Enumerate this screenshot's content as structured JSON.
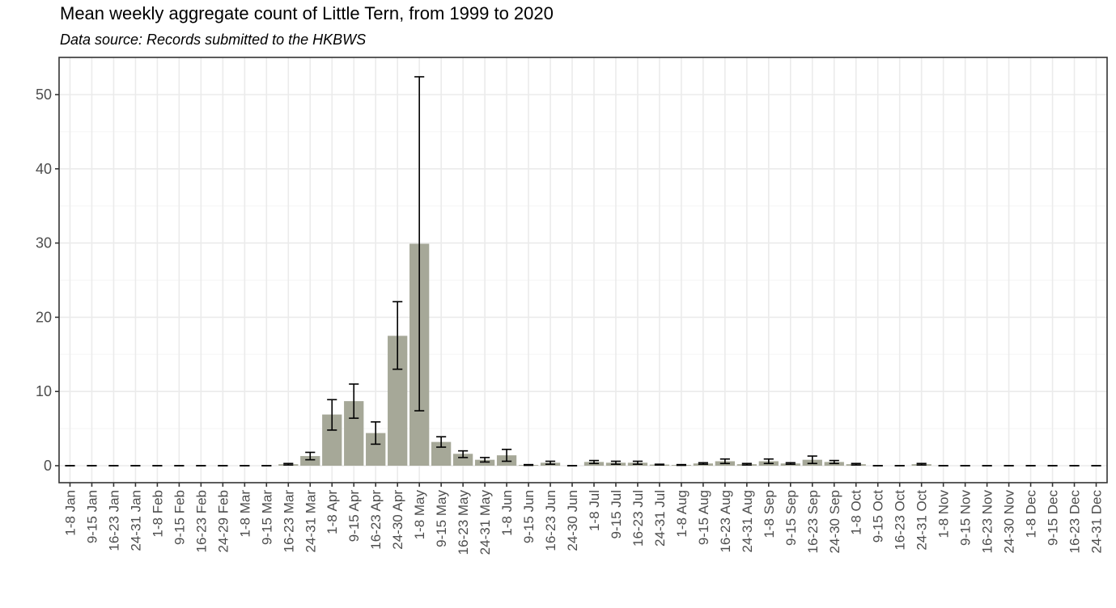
{
  "chart_data": {
    "type": "bar",
    "title": "Mean weekly aggregate count of Little Tern, from 1999 to 2020",
    "subtitle": "Data source: Records submitted to the HKBWS",
    "xlabel": "",
    "ylabel": "",
    "ylim": [
      0,
      55
    ],
    "yticks": [
      0,
      10,
      20,
      30,
      40,
      50
    ],
    "grid": true,
    "categories": [
      "1-8 Jan",
      "9-15 Jan",
      "16-23 Jan",
      "24-31 Jan",
      "1-8 Feb",
      "9-15 Feb",
      "16-23 Feb",
      "24-29 Feb",
      "1-8 Mar",
      "9-15 Mar",
      "16-23 Mar",
      "24-31 Mar",
      "1-8 Apr",
      "9-15 Apr",
      "16-23 Apr",
      "24-30 Apr",
      "1-8 May",
      "9-15 May",
      "16-23 May",
      "24-31 May",
      "1-8 Jun",
      "9-15 Jun",
      "16-23 Jun",
      "24-30 Jun",
      "1-8 Jul",
      "9-15 Jul",
      "16-23 Jul",
      "24-31 Jul",
      "1-8 Aug",
      "9-15 Aug",
      "16-23 Aug",
      "24-31 Aug",
      "1-8 Sep",
      "9-15 Sep",
      "16-23 Sep",
      "24-30 Sep",
      "1-8 Oct",
      "9-15 Oct",
      "16-23 Oct",
      "24-31 Oct",
      "1-8 Nov",
      "9-15 Nov",
      "16-23 Nov",
      "24-30 Nov",
      "1-8 Dec",
      "9-15 Dec",
      "16-23 Dec",
      "24-31 Dec"
    ],
    "values": [
      0,
      0,
      0,
      0,
      0,
      0,
      0,
      0,
      0,
      0,
      0.2,
      1.3,
      6.9,
      8.7,
      4.4,
      17.5,
      29.9,
      3.2,
      1.6,
      0.8,
      1.4,
      0.1,
      0.4,
      0,
      0.5,
      0.4,
      0.4,
      0.15,
      0.1,
      0.3,
      0.6,
      0.2,
      0.6,
      0.3,
      0.8,
      0.5,
      0.2,
      0,
      0,
      0.2,
      0,
      0,
      0,
      0,
      0,
      0,
      0,
      0
    ],
    "error_low": [
      0,
      0,
      0,
      0,
      0,
      0,
      0,
      0,
      0,
      0,
      0.1,
      0.8,
      4.8,
      6.4,
      2.9,
      13.0,
      7.4,
      2.5,
      1.1,
      0.5,
      0.6,
      0.05,
      0.2,
      0,
      0.3,
      0.2,
      0.2,
      0.1,
      0.05,
      0.2,
      0.3,
      0.1,
      0.3,
      0.2,
      0.3,
      0.3,
      0.1,
      0,
      0,
      0.1,
      0,
      0,
      0,
      0,
      0,
      0,
      0,
      0
    ],
    "error_high": [
      0,
      0,
      0,
      0,
      0,
      0,
      0,
      0,
      0,
      0,
      0.3,
      1.8,
      8.9,
      11.0,
      5.9,
      22.1,
      52.4,
      3.9,
      2.0,
      1.1,
      2.2,
      0.15,
      0.6,
      0,
      0.7,
      0.6,
      0.6,
      0.2,
      0.15,
      0.4,
      0.9,
      0.3,
      0.9,
      0.4,
      1.3,
      0.7,
      0.3,
      0,
      0,
      0.3,
      0,
      0,
      0,
      0,
      0,
      0,
      0,
      0
    ],
    "colors": {
      "bar": "#a6a898",
      "error_bar": "#000000",
      "grid_major": "#ebebeb",
      "grid_minor": "#f5f5f5",
      "panel_border": "#333333",
      "tick_label": "#4d4d4d"
    }
  }
}
